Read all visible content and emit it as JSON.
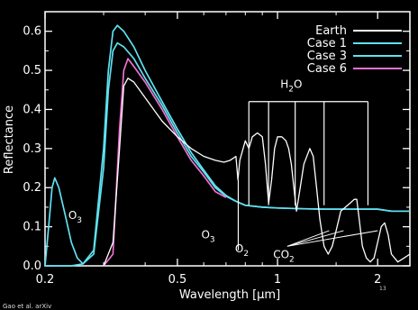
{
  "credit": "Gao et al. arXiv",
  "page_number": "13",
  "chart_data": {
    "type": "line",
    "xlabel": "Wavelength [μm]",
    "ylabel": "Reflectance",
    "xscale": "log",
    "xlim": [
      0.2,
      2.5
    ],
    "ylim": [
      0,
      0.65
    ],
    "x_ticks": [
      {
        "v": 0.2,
        "label": "0.2"
      },
      {
        "v": 0.5,
        "label": "0.5"
      },
      {
        "v": 1,
        "label": "1"
      },
      {
        "v": 2,
        "label": "2"
      }
    ],
    "y_ticks": [
      {
        "v": 0,
        "label": "0.0"
      },
      {
        "v": 0.1,
        "label": "0.1"
      },
      {
        "v": 0.2,
        "label": "0.2"
      },
      {
        "v": 0.3,
        "label": "0.3"
      },
      {
        "v": 0.4,
        "label": "0.4"
      },
      {
        "v": 0.5,
        "label": "0.5"
      },
      {
        "v": 0.6,
        "label": "0.6"
      }
    ],
    "legend_position": "top-right",
    "series": [
      {
        "name": "Earth",
        "color": "#ffffff",
        "width": 1.3,
        "points": [
          [
            0.3,
            0.0
          ],
          [
            0.32,
            0.06
          ],
          [
            0.335,
            0.3
          ],
          [
            0.345,
            0.46
          ],
          [
            0.355,
            0.48
          ],
          [
            0.37,
            0.47
          ],
          [
            0.4,
            0.43
          ],
          [
            0.45,
            0.37
          ],
          [
            0.5,
            0.33
          ],
          [
            0.55,
            0.3
          ],
          [
            0.6,
            0.28
          ],
          [
            0.65,
            0.27
          ],
          [
            0.69,
            0.265
          ],
          [
            0.72,
            0.27
          ],
          [
            0.75,
            0.28
          ],
          [
            0.76,
            0.22
          ],
          [
            0.77,
            0.27
          ],
          [
            0.8,
            0.32
          ],
          [
            0.82,
            0.3
          ],
          [
            0.84,
            0.33
          ],
          [
            0.87,
            0.34
          ],
          [
            0.9,
            0.33
          ],
          [
            0.92,
            0.26
          ],
          [
            0.94,
            0.16
          ],
          [
            0.96,
            0.22
          ],
          [
            0.98,
            0.3
          ],
          [
            1.0,
            0.33
          ],
          [
            1.03,
            0.33
          ],
          [
            1.06,
            0.32
          ],
          [
            1.08,
            0.3
          ],
          [
            1.1,
            0.26
          ],
          [
            1.12,
            0.2
          ],
          [
            1.14,
            0.14
          ],
          [
            1.16,
            0.18
          ],
          [
            1.2,
            0.26
          ],
          [
            1.25,
            0.3
          ],
          [
            1.28,
            0.28
          ],
          [
            1.31,
            0.2
          ],
          [
            1.34,
            0.12
          ],
          [
            1.38,
            0.05
          ],
          [
            1.42,
            0.03
          ],
          [
            1.46,
            0.05
          ],
          [
            1.5,
            0.09
          ],
          [
            1.55,
            0.14
          ],
          [
            1.6,
            0.15
          ],
          [
            1.65,
            0.16
          ],
          [
            1.7,
            0.17
          ],
          [
            1.73,
            0.17
          ],
          [
            1.76,
            0.12
          ],
          [
            1.8,
            0.05
          ],
          [
            1.85,
            0.02
          ],
          [
            1.9,
            0.01
          ],
          [
            1.95,
            0.02
          ],
          [
            2.0,
            0.06
          ],
          [
            2.05,
            0.1
          ],
          [
            2.1,
            0.11
          ],
          [
            2.15,
            0.08
          ],
          [
            2.2,
            0.03
          ],
          [
            2.3,
            0.01
          ],
          [
            2.4,
            0.02
          ],
          [
            2.5,
            0.03
          ]
        ]
      },
      {
        "name": "Case 1",
        "color": "#60e0f0",
        "width": 1.7,
        "points": [
          [
            0.2,
            0.0
          ],
          [
            0.205,
            0.1
          ],
          [
            0.21,
            0.2
          ],
          [
            0.214,
            0.225
          ],
          [
            0.22,
            0.2
          ],
          [
            0.23,
            0.13
          ],
          [
            0.24,
            0.06
          ],
          [
            0.25,
            0.02
          ],
          [
            0.26,
            0.005
          ],
          [
            0.28,
            0.04
          ],
          [
            0.3,
            0.3
          ],
          [
            0.31,
            0.5
          ],
          [
            0.32,
            0.6
          ],
          [
            0.33,
            0.615
          ],
          [
            0.345,
            0.6
          ],
          [
            0.37,
            0.56
          ],
          [
            0.4,
            0.5
          ],
          [
            0.45,
            0.42
          ],
          [
            0.5,
            0.35
          ],
          [
            0.55,
            0.29
          ],
          [
            0.6,
            0.245
          ],
          [
            0.65,
            0.205
          ],
          [
            0.7,
            0.18
          ],
          [
            0.75,
            0.165
          ],
          [
            0.8,
            0.155
          ],
          [
            0.9,
            0.15
          ],
          [
            1.0,
            0.148
          ],
          [
            1.2,
            0.146
          ],
          [
            1.4,
            0.145
          ],
          [
            1.6,
            0.145
          ],
          [
            1.8,
            0.145
          ],
          [
            2.0,
            0.145
          ],
          [
            2.2,
            0.14
          ],
          [
            2.4,
            0.14
          ],
          [
            2.5,
            0.14
          ]
        ]
      },
      {
        "name": "Case 3",
        "color": "#60e0f0",
        "width": 1.7,
        "points": [
          [
            0.2,
            0.0
          ],
          [
            0.24,
            0.0
          ],
          [
            0.26,
            0.005
          ],
          [
            0.28,
            0.03
          ],
          [
            0.3,
            0.25
          ],
          [
            0.31,
            0.45
          ],
          [
            0.32,
            0.55
          ],
          [
            0.33,
            0.57
          ],
          [
            0.345,
            0.56
          ],
          [
            0.37,
            0.53
          ],
          [
            0.4,
            0.48
          ],
          [
            0.45,
            0.41
          ],
          [
            0.5,
            0.34
          ],
          [
            0.55,
            0.28
          ],
          [
            0.6,
            0.24
          ],
          [
            0.65,
            0.2
          ],
          [
            0.7,
            0.178
          ],
          [
            0.75,
            0.165
          ],
          [
            0.8,
            0.155
          ],
          [
            0.9,
            0.15
          ],
          [
            1.0,
            0.148
          ],
          [
            1.2,
            0.146
          ],
          [
            1.4,
            0.145
          ],
          [
            1.6,
            0.145
          ],
          [
            1.8,
            0.145
          ],
          [
            2.0,
            0.145
          ],
          [
            2.2,
            0.14
          ],
          [
            2.4,
            0.14
          ],
          [
            2.5,
            0.14
          ]
        ]
      },
      {
        "name": "Case 6",
        "color": "#f070d0",
        "width": 1.7,
        "points": [
          [
            0.3,
            0.0
          ],
          [
            0.32,
            0.03
          ],
          [
            0.335,
            0.35
          ],
          [
            0.345,
            0.5
          ],
          [
            0.355,
            0.53
          ],
          [
            0.37,
            0.51
          ],
          [
            0.4,
            0.47
          ],
          [
            0.45,
            0.4
          ],
          [
            0.5,
            0.33
          ],
          [
            0.55,
            0.27
          ],
          [
            0.6,
            0.23
          ],
          [
            0.65,
            0.19
          ],
          [
            0.7,
            0.175
          ]
        ]
      }
    ],
    "annotations": [
      {
        "text": "O3",
        "base": "O",
        "sub": "3",
        "x": 0.235,
        "y": 0.12
      },
      {
        "text": "O3",
        "base": "O",
        "sub": "3",
        "x": 0.59,
        "y": 0.07
      },
      {
        "text": "O2",
        "base": "O",
        "sub": "2",
        "x": 0.745,
        "y": 0.035
      },
      {
        "text": "CO2",
        "base": "CO",
        "sub": "2",
        "x": 0.97,
        "y": 0.02
      },
      {
        "text": "H2O",
        "base": "H",
        "sub": "2",
        "suffix": "O",
        "x": 1.02,
        "y": 0.455
      }
    ],
    "h2o_bracket": {
      "y_top": 0.42,
      "y_bottom": 0.155,
      "xs": [
        0.82,
        0.94,
        1.13,
        1.38,
        1.87
      ]
    },
    "co2_bands": {
      "label_x": 1.07,
      "label_y": 0.05,
      "xs": [
        1.43,
        1.58,
        2.0
      ]
    }
  }
}
